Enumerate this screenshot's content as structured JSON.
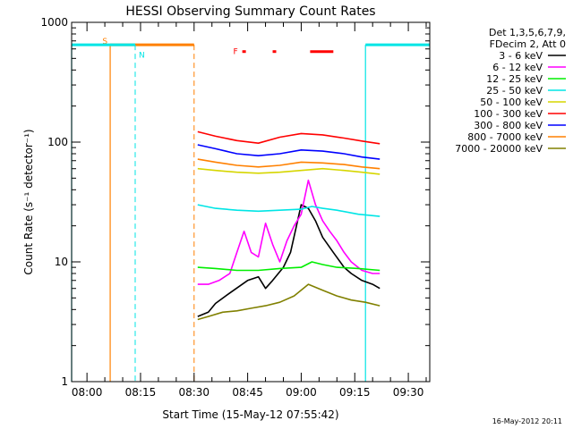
{
  "chart_data": {
    "type": "line",
    "title": "HESSI Observing Summary Count Rates",
    "xlabel": "Start Time (15-May-12 07:55:42)",
    "ylabel": "Count Rate (s⁻¹ detector⁻¹)",
    "yscale": "log",
    "ylim": [
      1,
      1000
    ],
    "xlim_minutes": [
      -4.3,
      96
    ],
    "x_ticks": [
      {
        "label": "08:00",
        "minute": 0
      },
      {
        "label": "08:15",
        "minute": 15
      },
      {
        "label": "08:30",
        "minute": 30
      },
      {
        "label": "08:45",
        "minute": 45
      },
      {
        "label": "09:00",
        "minute": 60
      },
      {
        "label": "09:15",
        "minute": 75
      },
      {
        "label": "09:30",
        "minute": 90
      }
    ],
    "y_ticks": [
      {
        "label": "1",
        "value": 1
      },
      {
        "label": "10",
        "value": 10
      },
      {
        "label": "100",
        "value": 100
      },
      {
        "label": "1000",
        "value": 1000
      }
    ],
    "legend": {
      "position": "top-right",
      "header": [
        "Det 1,3,5,6,7,9,",
        "FDecim 2, Att 0"
      ],
      "entries": [
        {
          "name": "3 - 6 keV",
          "color": "#000000"
        },
        {
          "name": "6 - 12 keV",
          "color": "#ff00ff"
        },
        {
          "name": "12 - 25 keV",
          "color": "#00ee00"
        },
        {
          "name": "25 - 50 keV",
          "color": "#00e5e5"
        },
        {
          "name": "50 - 100 keV",
          "color": "#d6d600"
        },
        {
          "name": "100 - 300 keV",
          "color": "#ff0000"
        },
        {
          "name": "300 - 800 keV",
          "color": "#0000ff"
        },
        {
          "name": "800 - 7000 keV",
          "color": "#ff8000"
        },
        {
          "name": "7000 - 20000 keV",
          "color": "#808000"
        }
      ]
    },
    "data_start_minute": 30.5,
    "data_end_minute": 83,
    "series": [
      {
        "name": "3 - 6 keV",
        "color": "#000000",
        "x": [
          31,
          34,
          36,
          40,
          45,
          48,
          50,
          52,
          55,
          57,
          59,
          60,
          62,
          64,
          66,
          69,
          72,
          74,
          77,
          80,
          82
        ],
        "y": [
          3.5,
          3.8,
          4.5,
          5.5,
          7,
          7.5,
          6,
          7,
          9,
          12,
          22,
          30,
          28,
          22,
          16,
          12,
          9,
          8,
          7,
          6.5,
          6
        ]
      },
      {
        "name": "6 - 12 keV",
        "color": "#ff00ff",
        "x": [
          31,
          34,
          37,
          40,
          42,
          44,
          46,
          48,
          50,
          52,
          54,
          56,
          58,
          60,
          62,
          64,
          66,
          68,
          70,
          72,
          74,
          77,
          80,
          82
        ],
        "y": [
          6.5,
          6.5,
          7,
          8,
          12,
          18,
          12,
          11,
          21,
          14,
          10,
          15,
          20,
          25,
          48,
          30,
          22,
          18,
          15,
          12,
          10,
          8.5,
          8,
          8
        ]
      },
      {
        "name": "12 - 25 keV",
        "color": "#00ee00",
        "x": [
          31,
          36,
          42,
          48,
          54,
          60,
          63,
          66,
          70,
          76,
          82
        ],
        "y": [
          9,
          8.8,
          8.5,
          8.5,
          8.8,
          9,
          10,
          9.5,
          9,
          8.8,
          8.5
        ]
      },
      {
        "name": "25 - 50 keV",
        "color": "#00e5e5",
        "x": [
          31,
          36,
          42,
          48,
          54,
          60,
          63,
          66,
          70,
          76,
          82
        ],
        "y": [
          30,
          28,
          27,
          26.5,
          27,
          27.5,
          29,
          28,
          27,
          25,
          24
        ]
      },
      {
        "name": "50 - 100 keV",
        "color": "#d6d600",
        "x": [
          31,
          36,
          42,
          48,
          54,
          60,
          66,
          72,
          77,
          82
        ],
        "y": [
          60,
          58,
          56,
          55,
          56,
          58,
          60,
          58,
          56,
          54
        ]
      },
      {
        "name": "100 - 300 keV",
        "color": "#ff0000",
        "x": [
          31,
          36,
          42,
          48,
          54,
          60,
          66,
          72,
          77,
          82
        ],
        "y": [
          122,
          112,
          103,
          98,
          110,
          118,
          115,
          108,
          102,
          97
        ]
      },
      {
        "name": "300 - 800 keV",
        "color": "#0000ff",
        "x": [
          31,
          36,
          42,
          48,
          54,
          60,
          66,
          72,
          77,
          82
        ],
        "y": [
          95,
          88,
          80,
          77,
          80,
          86,
          84,
          80,
          75,
          72
        ]
      },
      {
        "name": "800 - 7000 keV",
        "color": "#ff8000",
        "x": [
          31,
          36,
          42,
          48,
          54,
          60,
          66,
          72,
          77,
          82
        ],
        "y": [
          72,
          68,
          64,
          62,
          64,
          68,
          67,
          65,
          62,
          60
        ]
      },
      {
        "name": "7000 - 20000 keV",
        "color": "#808000",
        "x": [
          31,
          34,
          38,
          42,
          46,
          50,
          54,
          58,
          62,
          66,
          70,
          74,
          78,
          82
        ],
        "y": [
          3.3,
          3.5,
          3.8,
          3.9,
          4.1,
          4.3,
          4.6,
          5.2,
          6.5,
          5.8,
          5.2,
          4.8,
          4.6,
          4.3
        ]
      }
    ],
    "annotations": {
      "flag_value": 650,
      "flag_row_high": 700,
      "flag_row_low": 500,
      "saa": {
        "label": "S",
        "color": "#ff8000",
        "start_minute": 6.5,
        "end_minute": 30.0
      },
      "night": {
        "label": "N",
        "color": "#00e5e5",
        "segments": [
          [
            -4.3,
            13.5
          ],
          [
            78,
            96
          ]
        ],
        "start_markers": [
          -4.3,
          78
        ],
        "end_markers": [
          13.5,
          96
        ]
      },
      "flare": {
        "label": "F",
        "color": "#ff0000",
        "segments": [
          [
            43.5,
            44.5
          ],
          [
            52,
            53
          ],
          [
            62.5,
            69
          ]
        ]
      }
    }
  },
  "footer": {
    "timestamp": "16-May-2012 20:11"
  }
}
